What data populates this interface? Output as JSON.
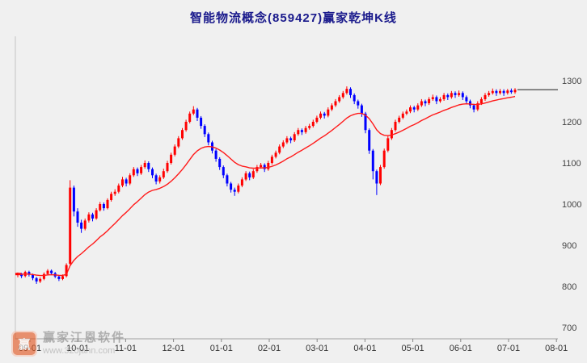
{
  "header": {
    "title": "智能物流概念(859427)赢家乾坤K线",
    "title_color": "#1a1a8c"
  },
  "watermark": {
    "brand": "赢家江恩软件",
    "url": "www.320jann.com",
    "logo_glyph": "赢",
    "logo_color": "#e2551e"
  },
  "chart_data": {
    "type": "candlestick",
    "title": "智能物流概念(859427)赢家乾坤K线",
    "x_tick_labels": [
      "09-01",
      "10-01",
      "11-01",
      "12-01",
      "01-01",
      "02-01",
      "03-01",
      "04-01",
      "05-01",
      "06-01",
      "07-01",
      "08-01"
    ],
    "y_ticks": [
      700,
      800,
      900,
      1000,
      1100,
      1200,
      1300
    ],
    "y_range": [
      700,
      1300
    ],
    "y_axis_side": "right",
    "grid": false,
    "legend": "none",
    "up_color": "#ff0000",
    "down_color": "#0000ff",
    "ma_color": "#ff1a1a",
    "axis_color": "#a0a0a0",
    "label_color": "#333333",
    "last_price_line": 1278,
    "left_marker_price": 830,
    "candles_format": [
      "open",
      "high",
      "low",
      "close"
    ],
    "candles": [
      [
        828,
        834,
        822,
        830
      ],
      [
        830,
        833,
        820,
        825
      ],
      [
        825,
        838,
        822,
        835
      ],
      [
        835,
        838,
        824,
        828
      ],
      [
        828,
        831,
        815,
        820
      ],
      [
        820,
        823,
        806,
        812
      ],
      [
        812,
        822,
        808,
        818
      ],
      [
        818,
        834,
        815,
        830
      ],
      [
        830,
        842,
        827,
        838
      ],
      [
        838,
        841,
        828,
        832
      ],
      [
        832,
        835,
        820,
        824
      ],
      [
        824,
        827,
        813,
        818
      ],
      [
        818,
        829,
        815,
        825
      ],
      [
        825,
        856,
        822,
        852
      ],
      [
        855,
        1058,
        850,
        1040
      ],
      [
        1040,
        1045,
        970,
        982
      ],
      [
        982,
        990,
        945,
        955
      ],
      [
        955,
        962,
        930,
        940
      ],
      [
        940,
        965,
        936,
        960
      ],
      [
        960,
        980,
        955,
        975
      ],
      [
        975,
        979,
        958,
        965
      ],
      [
        965,
        990,
        962,
        985
      ],
      [
        985,
        1005,
        982,
        1000
      ],
      [
        1000,
        1004,
        984,
        990
      ],
      [
        990,
        1014,
        987,
        1010
      ],
      [
        1010,
        1030,
        1006,
        1025
      ],
      [
        1025,
        1036,
        1020,
        1030
      ],
      [
        1030,
        1050,
        1026,
        1045
      ],
      [
        1045,
        1066,
        1041,
        1060
      ],
      [
        1060,
        1064,
        1043,
        1050
      ],
      [
        1050,
        1075,
        1046,
        1070
      ],
      [
        1070,
        1090,
        1066,
        1085
      ],
      [
        1085,
        1089,
        1068,
        1075
      ],
      [
        1075,
        1095,
        1071,
        1090
      ],
      [
        1090,
        1106,
        1086,
        1100
      ],
      [
        1100,
        1104,
        1078,
        1085
      ],
      [
        1085,
        1089,
        1063,
        1070
      ],
      [
        1070,
        1074,
        1048,
        1055
      ],
      [
        1055,
        1070,
        1050,
        1065
      ],
      [
        1065,
        1086,
        1061,
        1080
      ],
      [
        1080,
        1105,
        1076,
        1100
      ],
      [
        1100,
        1125,
        1096,
        1120
      ],
      [
        1120,
        1145,
        1116,
        1140
      ],
      [
        1140,
        1165,
        1136,
        1160
      ],
      [
        1160,
        1185,
        1156,
        1180
      ],
      [
        1180,
        1205,
        1176,
        1200
      ],
      [
        1200,
        1225,
        1196,
        1220
      ],
      [
        1220,
        1238,
        1216,
        1230
      ],
      [
        1230,
        1234,
        1202,
        1210
      ],
      [
        1210,
        1214,
        1183,
        1190
      ],
      [
        1190,
        1194,
        1163,
        1170
      ],
      [
        1170,
        1174,
        1143,
        1150
      ],
      [
        1150,
        1154,
        1123,
        1130
      ],
      [
        1130,
        1134,
        1103,
        1110
      ],
      [
        1110,
        1114,
        1083,
        1090
      ],
      [
        1090,
        1094,
        1063,
        1070
      ],
      [
        1070,
        1074,
        1043,
        1050
      ],
      [
        1050,
        1054,
        1028,
        1035
      ],
      [
        1035,
        1040,
        1020,
        1030
      ],
      [
        1030,
        1050,
        1026,
        1045
      ],
      [
        1045,
        1065,
        1041,
        1060
      ],
      [
        1060,
        1080,
        1056,
        1075
      ],
      [
        1075,
        1079,
        1058,
        1065
      ],
      [
        1065,
        1085,
        1061,
        1080
      ],
      [
        1080,
        1095,
        1076,
        1090
      ],
      [
        1090,
        1100,
        1086,
        1095
      ],
      [
        1095,
        1099,
        1078,
        1085
      ],
      [
        1085,
        1105,
        1081,
        1100
      ],
      [
        1100,
        1120,
        1096,
        1115
      ],
      [
        1115,
        1130,
        1111,
        1125
      ],
      [
        1125,
        1145,
        1121,
        1140
      ],
      [
        1140,
        1155,
        1136,
        1150
      ],
      [
        1150,
        1165,
        1146,
        1160
      ],
      [
        1160,
        1164,
        1148,
        1155
      ],
      [
        1155,
        1175,
        1151,
        1170
      ],
      [
        1170,
        1185,
        1166,
        1180
      ],
      [
        1180,
        1184,
        1168,
        1175
      ],
      [
        1175,
        1190,
        1171,
        1185
      ],
      [
        1185,
        1195,
        1181,
        1190
      ],
      [
        1190,
        1205,
        1186,
        1200
      ],
      [
        1200,
        1215,
        1196,
        1210
      ],
      [
        1210,
        1225,
        1206,
        1220
      ],
      [
        1220,
        1224,
        1208,
        1215
      ],
      [
        1215,
        1235,
        1211,
        1230
      ],
      [
        1230,
        1245,
        1226,
        1240
      ],
      [
        1240,
        1255,
        1236,
        1250
      ],
      [
        1250,
        1265,
        1246,
        1260
      ],
      [
        1260,
        1275,
        1256,
        1270
      ],
      [
        1270,
        1286,
        1266,
        1280
      ],
      [
        1280,
        1284,
        1258,
        1265
      ],
      [
        1265,
        1269,
        1243,
        1250
      ],
      [
        1250,
        1254,
        1232,
        1240
      ],
      [
        1240,
        1244,
        1212,
        1220
      ],
      [
        1220,
        1224,
        1172,
        1180
      ],
      [
        1180,
        1184,
        1122,
        1130
      ],
      [
        1130,
        1134,
        1060,
        1080
      ],
      [
        1080,
        1084,
        1022,
        1050
      ],
      [
        1050,
        1095,
        1046,
        1090
      ],
      [
        1090,
        1135,
        1086,
        1130
      ],
      [
        1130,
        1165,
        1126,
        1160
      ],
      [
        1160,
        1185,
        1156,
        1180
      ],
      [
        1180,
        1205,
        1176,
        1200
      ],
      [
        1200,
        1215,
        1196,
        1210
      ],
      [
        1210,
        1225,
        1206,
        1220
      ],
      [
        1220,
        1230,
        1216,
        1225
      ],
      [
        1225,
        1240,
        1221,
        1235
      ],
      [
        1235,
        1239,
        1223,
        1230
      ],
      [
        1230,
        1245,
        1226,
        1240
      ],
      [
        1240,
        1255,
        1236,
        1250
      ],
      [
        1250,
        1254,
        1238,
        1245
      ],
      [
        1245,
        1260,
        1241,
        1255
      ],
      [
        1255,
        1266,
        1251,
        1260
      ],
      [
        1260,
        1264,
        1243,
        1250
      ],
      [
        1250,
        1260,
        1246,
        1255
      ],
      [
        1255,
        1270,
        1251,
        1265
      ],
      [
        1265,
        1269,
        1253,
        1260
      ],
      [
        1260,
        1275,
        1256,
        1270
      ],
      [
        1270,
        1274,
        1258,
        1265
      ],
      [
        1265,
        1276,
        1261,
        1270
      ],
      [
        1270,
        1274,
        1253,
        1260
      ],
      [
        1260,
        1264,
        1243,
        1250
      ],
      [
        1250,
        1254,
        1233,
        1240
      ],
      [
        1240,
        1244,
        1223,
        1230
      ],
      [
        1230,
        1250,
        1226,
        1245
      ],
      [
        1245,
        1260,
        1241,
        1255
      ],
      [
        1255,
        1270,
        1251,
        1265
      ],
      [
        1265,
        1275,
        1261,
        1270
      ],
      [
        1270,
        1281,
        1266,
        1275
      ],
      [
        1275,
        1279,
        1263,
        1270
      ],
      [
        1270,
        1280,
        1266,
        1275
      ],
      [
        1275,
        1279,
        1263,
        1270
      ],
      [
        1270,
        1280,
        1266,
        1276
      ],
      [
        1276,
        1281,
        1268,
        1272
      ],
      [
        1272,
        1282,
        1268,
        1278
      ]
    ]
  }
}
